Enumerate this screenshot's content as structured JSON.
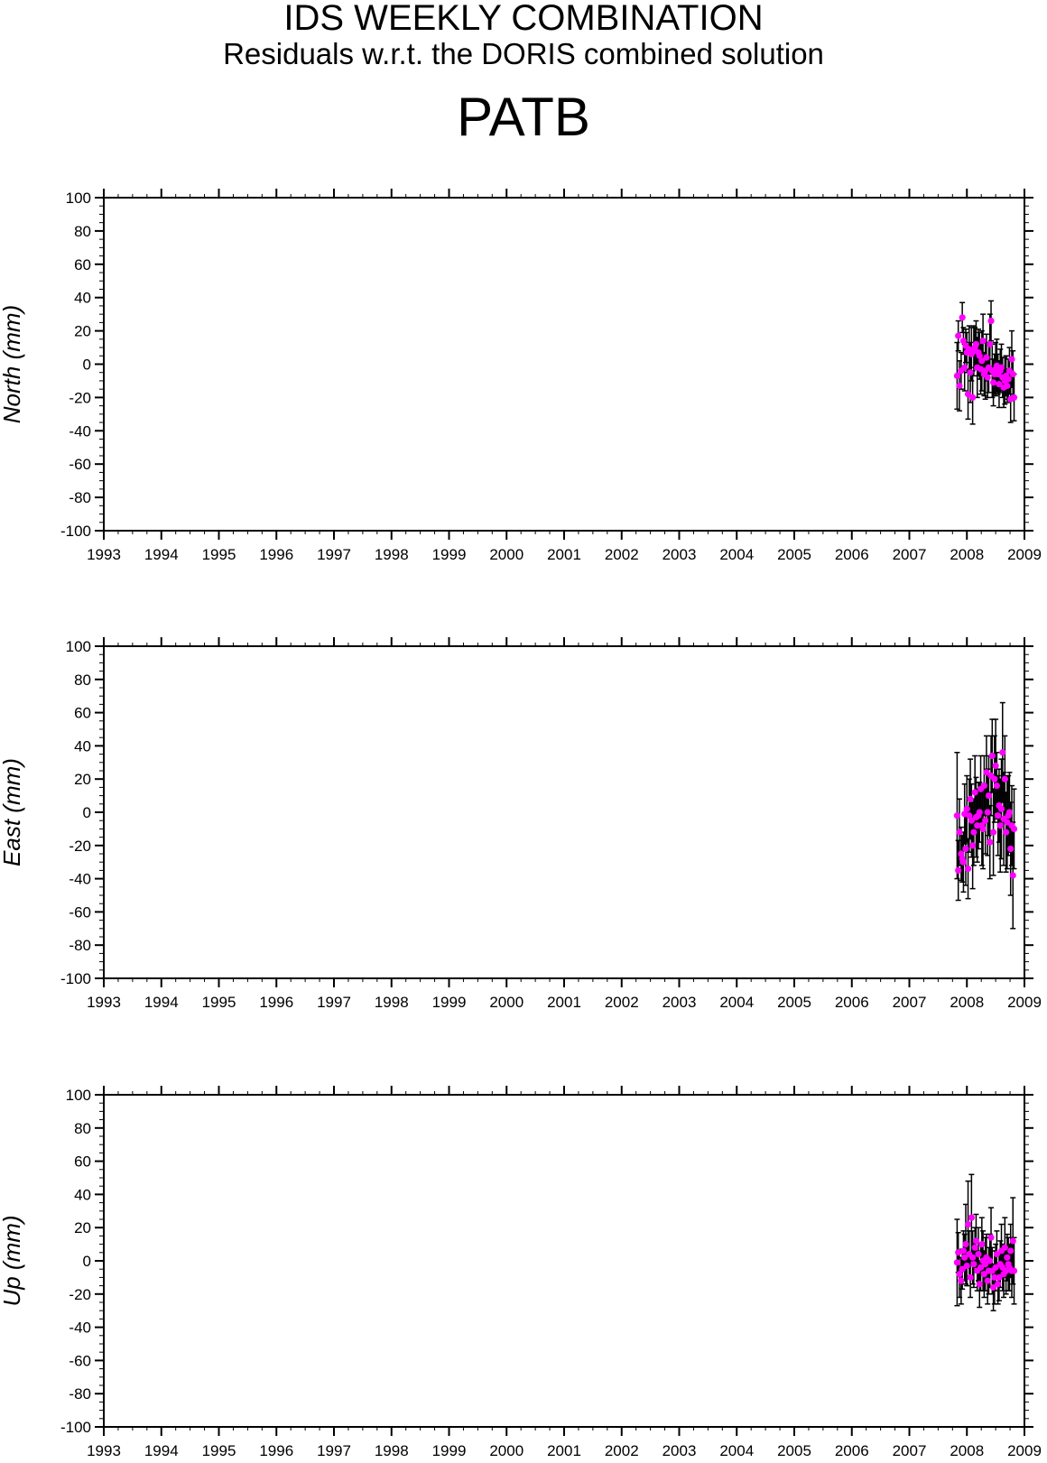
{
  "title": "IDS WEEKLY COMBINATION",
  "subtitle": "Residuals w.r.t. the DORIS combined solution",
  "station": "PATB",
  "colors": {
    "point": "#ff00ff",
    "errorbar": "#000000",
    "axis": "#000000"
  },
  "chart_data": [
    {
      "type": "scatter",
      "ylabel": "North (mm)",
      "xlim": [
        1993,
        2009
      ],
      "ylim": [
        -100,
        100
      ],
      "xticks": [
        "1993",
        "1994",
        "1995",
        "1996",
        "1997",
        "1998",
        "1999",
        "2000",
        "2001",
        "2002",
        "2003",
        "2004",
        "2005",
        "2006",
        "2007",
        "2008",
        "2009"
      ],
      "yticks": [
        "100",
        "80",
        "60",
        "40",
        "20",
        "0",
        "-20",
        "-40",
        "-60",
        "-80",
        "-100"
      ],
      "series": [
        {
          "x": [
            2007.83,
            2007.85,
            2007.87,
            2007.9,
            2007.92,
            2007.94,
            2007.96,
            2007.98,
            2008.0,
            2008.02,
            2008.04,
            2008.06,
            2008.08,
            2008.1,
            2008.12,
            2008.14,
            2008.16,
            2008.18,
            2008.2,
            2008.22,
            2008.24,
            2008.26,
            2008.28,
            2008.3,
            2008.32,
            2008.34,
            2008.36,
            2008.38,
            2008.4,
            2008.42,
            2008.44,
            2008.46,
            2008.48,
            2008.5,
            2008.52,
            2008.54,
            2008.56,
            2008.58,
            2008.6,
            2008.62,
            2008.64,
            2008.66,
            2008.68,
            2008.7,
            2008.72,
            2008.74,
            2008.76,
            2008.78,
            2008.8,
            2008.82
          ],
          "y": [
            -7,
            17,
            -13,
            -4,
            28,
            14,
            -2,
            11,
            7,
            -18,
            9,
            -5,
            6,
            -20,
            8,
            10,
            12,
            -2,
            7,
            5,
            -3,
            2,
            14,
            -6,
            -4,
            4,
            -8,
            -2,
            12,
            26,
            -4,
            -11,
            -6,
            -3,
            -1,
            -6,
            -12,
            -4,
            -2,
            -8,
            -14,
            -10,
            -7,
            -13,
            -9,
            -4,
            -21,
            3,
            -6,
            -20
          ],
          "err": [
            20,
            9,
            15,
            11,
            9,
            8,
            14,
            10,
            12,
            15,
            14,
            18,
            16,
            16,
            15,
            12,
            14,
            18,
            14,
            14,
            15,
            18,
            16,
            13,
            17,
            14,
            12,
            15,
            18,
            12,
            16,
            14,
            12,
            16,
            16,
            12,
            14,
            13,
            14,
            12,
            12,
            14,
            12,
            10,
            12,
            14,
            14,
            17,
            14,
            14
          ]
        }
      ]
    },
    {
      "type": "scatter",
      "ylabel": "East (mm)",
      "xlim": [
        1993,
        2009
      ],
      "ylim": [
        -100,
        100
      ],
      "xticks": [
        "1993",
        "1994",
        "1995",
        "1996",
        "1997",
        "1998",
        "1999",
        "2000",
        "2001",
        "2002",
        "2003",
        "2004",
        "2005",
        "2006",
        "2007",
        "2008",
        "2009"
      ],
      "yticks": [
        "100",
        "80",
        "60",
        "40",
        "20",
        "0",
        "-20",
        "-40",
        "-60",
        "-80",
        "-100"
      ],
      "series": [
        {
          "x": [
            2007.83,
            2007.85,
            2007.87,
            2007.9,
            2007.92,
            2007.94,
            2007.96,
            2007.98,
            2008.0,
            2008.02,
            2008.04,
            2008.06,
            2008.08,
            2008.1,
            2008.12,
            2008.14,
            2008.16,
            2008.18,
            2008.2,
            2008.22,
            2008.24,
            2008.26,
            2008.28,
            2008.3,
            2008.32,
            2008.34,
            2008.36,
            2008.38,
            2008.4,
            2008.42,
            2008.44,
            2008.46,
            2008.48,
            2008.5,
            2008.52,
            2008.54,
            2008.56,
            2008.58,
            2008.6,
            2008.62,
            2008.64,
            2008.66,
            2008.68,
            2008.7,
            2008.72,
            2008.74,
            2008.76,
            2008.78,
            2008.8,
            2008.82
          ],
          "y": [
            -2,
            -35,
            -12,
            -25,
            -28,
            -30,
            -1,
            -22,
            2,
            -34,
            -2,
            8,
            -5,
            -20,
            -12,
            12,
            -3,
            -8,
            -2,
            0,
            14,
            -8,
            -10,
            16,
            -5,
            24,
            0,
            10,
            -18,
            22,
            34,
            -12,
            20,
            28,
            16,
            -2,
            4,
            -8,
            2,
            36,
            -4,
            20,
            -12,
            -6,
            -2,
            0,
            -22,
            -8,
            -38,
            -10
          ],
          "err": [
            38,
            18,
            20,
            16,
            14,
            18,
            18,
            22,
            20,
            18,
            22,
            24,
            22,
            26,
            20,
            22,
            24,
            22,
            20,
            18,
            20,
            24,
            24,
            18,
            20,
            22,
            26,
            24,
            22,
            24,
            22,
            26,
            26,
            28,
            20,
            24,
            22,
            28,
            30,
            30,
            28,
            26,
            24,
            28,
            24,
            24,
            28,
            24,
            32,
            24
          ]
        }
      ]
    },
    {
      "type": "scatter",
      "ylabel": "Up (mm)",
      "xlim": [
        1993,
        2009
      ],
      "ylim": [
        -100,
        100
      ],
      "xticks": [
        "1993",
        "1994",
        "1995",
        "1996",
        "1997",
        "1998",
        "1999",
        "2000",
        "2001",
        "2002",
        "2003",
        "2004",
        "2005",
        "2006",
        "2007",
        "2008",
        "2009"
      ],
      "yticks": [
        "100",
        "80",
        "60",
        "40",
        "20",
        "0",
        "-20",
        "-40",
        "-60",
        "-80",
        "-100"
      ],
      "series": [
        {
          "x": [
            2007.83,
            2007.85,
            2007.87,
            2007.9,
            2007.92,
            2007.94,
            2007.96,
            2007.98,
            2008.0,
            2008.02,
            2008.04,
            2008.06,
            2008.08,
            2008.1,
            2008.12,
            2008.14,
            2008.16,
            2008.18,
            2008.2,
            2008.22,
            2008.24,
            2008.26,
            2008.28,
            2008.3,
            2008.32,
            2008.34,
            2008.36,
            2008.38,
            2008.4,
            2008.42,
            2008.44,
            2008.46,
            2008.48,
            2008.5,
            2008.52,
            2008.54,
            2008.56,
            2008.58,
            2008.6,
            2008.62,
            2008.64,
            2008.66,
            2008.68,
            2008.7,
            2008.72,
            2008.74,
            2008.76,
            2008.78,
            2008.8,
            2008.82
          ],
          "y": [
            -1,
            5,
            -8,
            -12,
            -5,
            6,
            2,
            10,
            -3,
            22,
            4,
            -10,
            26,
            2,
            -2,
            8,
            12,
            -6,
            4,
            -14,
            -4,
            10,
            0,
            -8,
            -2,
            2,
            -12,
            -6,
            0,
            14,
            -6,
            -16,
            -10,
            -4,
            4,
            -14,
            -10,
            -2,
            6,
            -4,
            -8,
            8,
            -6,
            2,
            -2,
            -4,
            6,
            -6,
            12,
            -6
          ],
          "err": [
            26,
            12,
            14,
            14,
            12,
            12,
            14,
            24,
            12,
            26,
            14,
            12,
            26,
            16,
            14,
            12,
            16,
            12,
            16,
            14,
            14,
            16,
            18,
            14,
            16,
            14,
            14,
            14,
            16,
            18,
            14,
            14,
            16,
            14,
            14,
            12,
            14,
            14,
            16,
            14,
            14,
            18,
            14,
            14,
            16,
            14,
            16,
            16,
            26,
            20
          ]
        }
      ]
    }
  ]
}
